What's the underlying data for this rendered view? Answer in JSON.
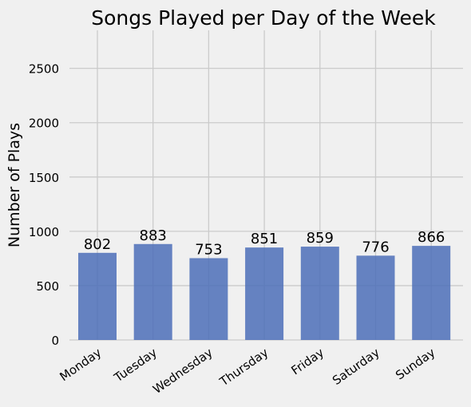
{
  "chart_data": {
    "type": "bar",
    "title": "Songs Played per Day of the Week",
    "xlabel": "",
    "ylabel": "Number of Plays",
    "categories": [
      "Monday",
      "Tuesday",
      "Wednesday",
      "Thursday",
      "Friday",
      "Saturday",
      "Sunday"
    ],
    "values": [
      802,
      883,
      753,
      851,
      859,
      776,
      866
    ],
    "data_labels": [
      "802",
      "883",
      "753",
      "851",
      "859",
      "776",
      "866"
    ],
    "ylim": [
      0,
      2850
    ],
    "yticks": [
      0,
      500,
      1000,
      1500,
      2000,
      2500
    ],
    "ytick_labels": [
      "0",
      "500",
      "1000",
      "1500",
      "2000",
      "2500"
    ],
    "grid": true,
    "legend": "none",
    "bar_color": "#4c6fb8",
    "background_color": "#f0f0f0",
    "grid_color": "#cbcbcb"
  }
}
